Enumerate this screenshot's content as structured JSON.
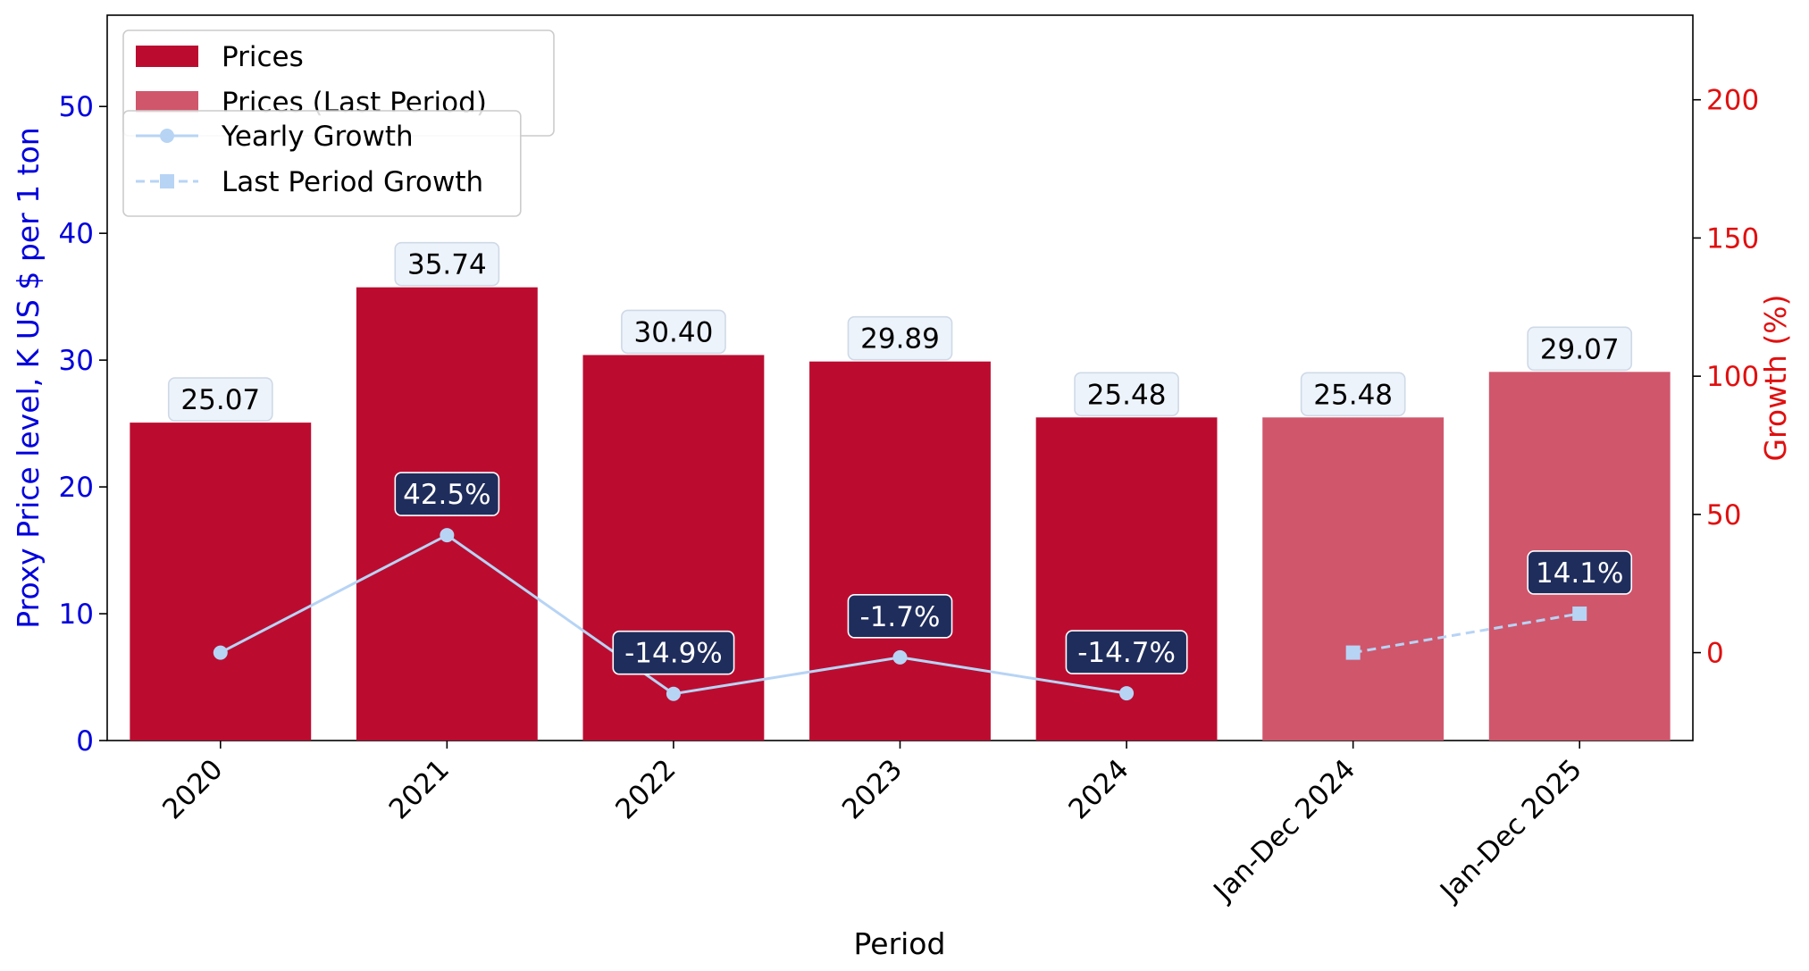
{
  "chart_data": {
    "type": "bar",
    "categories": [
      "2020",
      "2021",
      "2022",
      "2023",
      "2024",
      "Jan-Dec 2024",
      "Jan-Dec 2025"
    ],
    "series": [
      {
        "name": "Prices",
        "kind": "bar",
        "axis": "left",
        "values": [
          25.07,
          35.74,
          30.4,
          29.89,
          25.48,
          null,
          null
        ],
        "labels": [
          "25.07",
          "35.74",
          "30.40",
          "29.89",
          "25.48",
          null,
          null
        ]
      },
      {
        "name": "Prices (Last Period)",
        "kind": "bar",
        "axis": "left",
        "values": [
          null,
          null,
          null,
          null,
          null,
          25.48,
          29.07
        ],
        "labels": [
          null,
          null,
          null,
          null,
          null,
          "25.48",
          "29.07"
        ]
      },
      {
        "name": "Yearly Growth",
        "kind": "line",
        "axis": "right",
        "values": [
          0,
          42.5,
          -14.9,
          -1.7,
          -14.7,
          null,
          null
        ],
        "labels": [
          null,
          "42.5%",
          "-14.9%",
          "-1.7%",
          "-14.7%",
          null,
          null
        ]
      },
      {
        "name": "Last Period Growth",
        "kind": "line",
        "axis": "right",
        "values": [
          null,
          null,
          null,
          null,
          null,
          0,
          14.1
        ],
        "labels": [
          null,
          null,
          null,
          null,
          null,
          null,
          "14.1%"
        ]
      }
    ],
    "xlabel": "Period",
    "ylabel": "Proxy Price level, K US $ per 1 ton",
    "y2label": "Growth (%)",
    "ylim": [
      0,
      57.2
    ],
    "y2lim": [
      -31.8,
      230.6
    ],
    "yticks": [
      0,
      10,
      20,
      30,
      40,
      50
    ],
    "y2ticks": [
      0,
      50,
      100,
      150,
      200
    ],
    "grid": false,
    "legend_position": "top-left",
    "colors": {
      "bar": "#bb0c30",
      "bar_last": "#d0566c",
      "line": "#b7d4f5",
      "left_axis": "#0000dd",
      "right_axis": "#e01010",
      "growth_label_bg": "#1f2d5c",
      "price_label_bg": "#edf3fb"
    }
  }
}
